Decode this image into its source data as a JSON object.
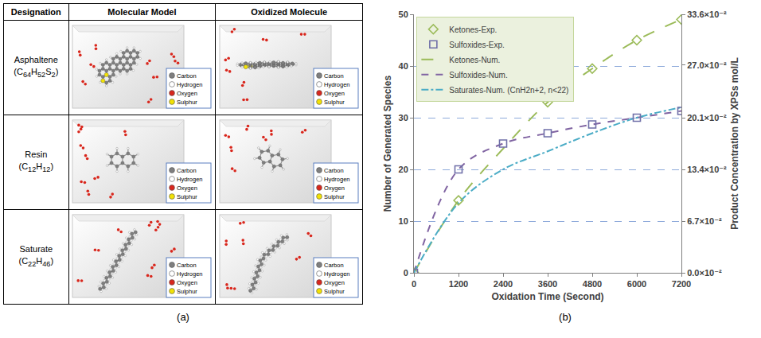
{
  "panel_labels": [
    "(a)",
    "(b)"
  ],
  "table": {
    "header": [
      "Designation",
      "Molecular Model",
      "Oxidized Molecule"
    ],
    "rows": [
      {
        "designation": "Asphaltene",
        "formula": "(C64H52S2)"
      },
      {
        "designation": "Resin",
        "formula": "(C12H12)"
      },
      {
        "designation": "Saturate",
        "formula": "(C22H46)"
      }
    ],
    "atom_legend": [
      {
        "name": "Carbon",
        "color": "#7f7f7f"
      },
      {
        "name": "Hydrogen",
        "color": "#ffffff"
      },
      {
        "name": "Oxygen",
        "color": "#d9261c"
      },
      {
        "name": "Sulphur",
        "color": "#f2e205"
      }
    ]
  },
  "chart_data": {
    "type": "line",
    "x_label": "Oxidation Time (Second)",
    "y_label": "Number of Generated Species",
    "y2_label": "Product Concentration by XPSs mol/L",
    "xlim": [
      0,
      7200
    ],
    "xticks": [
      0,
      1200,
      2400,
      3600,
      4800,
      6000,
      7200
    ],
    "ylim": [
      0,
      50
    ],
    "yticks": [
      0,
      10,
      20,
      30,
      40,
      50
    ],
    "y2lim": [
      0,
      0.336
    ],
    "y2ticks": [
      {
        "value": 0,
        "label": "0.0×10⁻²"
      },
      {
        "value": 0.067,
        "label": "6.7×10⁻²"
      },
      {
        "value": 0.134,
        "label": "13.4×10⁻²"
      },
      {
        "value": 0.201,
        "label": "20.1×10⁻²"
      },
      {
        "value": 0.27,
        "label": "27.0×10⁻²"
      },
      {
        "value": 0.336,
        "label": "33.6×10⁻²"
      }
    ],
    "grid": true,
    "legend": "top left",
    "series": [
      {
        "name": "Ketones-Exp.",
        "type": "scatter",
        "marker": "diamond",
        "color": "#9bbb59",
        "x": [
          0,
          1200,
          3600,
          4800,
          6000,
          7200
        ],
        "values": [
          0,
          14,
          33,
          39.5,
          45,
          49
        ]
      },
      {
        "name": "Sulfoxides-Exp.",
        "type": "scatter",
        "marker": "square",
        "color": "#6f6fa8",
        "x": [
          0,
          1200,
          2400,
          3600,
          4800,
          6000,
          7200
        ],
        "values": [
          0,
          20,
          25,
          27,
          28.7,
          30,
          31.3
        ]
      },
      {
        "name": "Ketones-Num.",
        "type": "line",
        "line_style": "longdash",
        "color": "#9bbb59",
        "x": [
          0,
          1200,
          2400,
          3600,
          4800,
          6000,
          7200
        ],
        "values": [
          0,
          14,
          24,
          33,
          39.5,
          45,
          49
        ]
      },
      {
        "name": "Sulfoxides-Num.",
        "type": "line",
        "line_style": "dash",
        "color": "#8064a2",
        "x": [
          0,
          1200,
          2400,
          3600,
          4800,
          6000,
          7200
        ],
        "values": [
          0,
          20,
          25,
          27,
          28.7,
          30,
          31.3
        ]
      },
      {
        "name": "Saturates-Num. (CnH2n+2, n<22)",
        "type": "line",
        "line_style": "dashdot",
        "color": "#4bacc6",
        "x": [
          0,
          1200,
          2400,
          3600,
          4800,
          6000,
          7200
        ],
        "values": [
          0,
          13.5,
          20,
          23.5,
          27,
          30,
          32
        ]
      }
    ]
  }
}
